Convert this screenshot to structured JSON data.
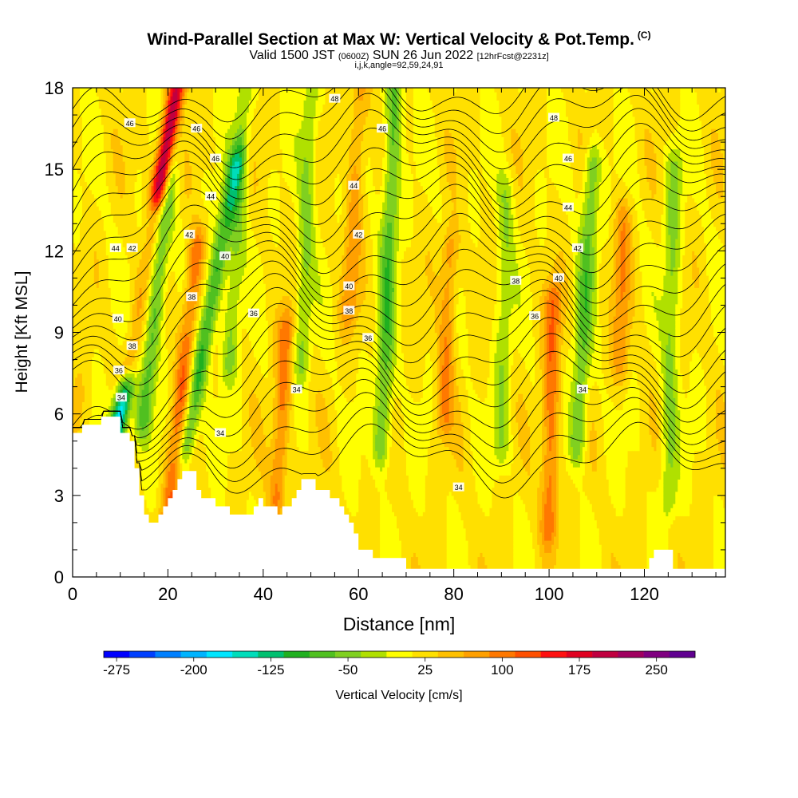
{
  "header": {
    "title": "Wind-Parallel Section at Max W: Vertical Velocity & Pot.Temp.",
    "copyright": "(C)",
    "subtitle_pre": "Valid 1500 JST",
    "subtitle_utc": "(0600Z)",
    "subtitle_mid": "SUN 26 Jun 2022",
    "subtitle_fcst": "[12hrFcst@2231z]",
    "indices": "i,j,k,angle=92,59,24,91"
  },
  "chart_data": {
    "type": "heatmap",
    "xlabel": "Distance [nm]",
    "ylabel": "Height [Kft MSL]",
    "xlim": [
      0,
      137
    ],
    "ylim": [
      0,
      18
    ],
    "x_ticks": [
      0,
      20,
      40,
      60,
      80,
      100,
      120
    ],
    "y_ticks": [
      0,
      3,
      6,
      9,
      12,
      15,
      18
    ],
    "colorbar": {
      "label": "Vertical Velocity [cm/s]",
      "tick_labels": [
        -275,
        -200,
        -125,
        -50,
        25,
        100,
        175,
        250
      ],
      "colors": [
        "#0000ff",
        "#0040ff",
        "#0080ff",
        "#00b4ff",
        "#00e6ff",
        "#00ddbb",
        "#00c070",
        "#20b020",
        "#50c020",
        "#80d020",
        "#b0e000",
        "#ffff00",
        "#ffe000",
        "#ffc000",
        "#ffa000",
        "#ff7800",
        "#ff5000",
        "#ff1010",
        "#e00020",
        "#c00040",
        "#a00060",
        "#800080",
        "#600090"
      ]
    },
    "terrain_profile": {
      "x": [
        0,
        1,
        2,
        3,
        4,
        5,
        6,
        7,
        8,
        9,
        10,
        11,
        12,
        13,
        14,
        15,
        16,
        17,
        18,
        19,
        20,
        21,
        22,
        23,
        24,
        25,
        26,
        27,
        28,
        29,
        30,
        31,
        32,
        33,
        34,
        35,
        36,
        37,
        38,
        39,
        40,
        41,
        42,
        43,
        44,
        45,
        46,
        47,
        48,
        49,
        50,
        51,
        52,
        53,
        54,
        55,
        56,
        57,
        58,
        59,
        60,
        61,
        62,
        63,
        64,
        65,
        66,
        67,
        68,
        69,
        70,
        75,
        80,
        85,
        90,
        95,
        100,
        105,
        110,
        115,
        120,
        121,
        122,
        123,
        124,
        125,
        126,
        127,
        128,
        130,
        135,
        137
      ],
      "height": [
        5.3,
        5.3,
        5.6,
        5.6,
        5.6,
        5.6,
        5.9,
        5.9,
        5.9,
        5.9,
        5.3,
        5.3,
        5.0,
        4.0,
        3.0,
        2.3,
        2.0,
        2.0,
        2.3,
        2.6,
        2.9,
        3.2,
        3.6,
        3.9,
        3.9,
        3.9,
        3.2,
        2.9,
        2.9,
        2.9,
        2.6,
        2.6,
        2.6,
        2.3,
        2.3,
        2.3,
        2.3,
        2.3,
        2.6,
        2.9,
        2.6,
        2.6,
        2.6,
        2.3,
        2.6,
        2.6,
        2.9,
        3.2,
        3.6,
        3.6,
        3.6,
        3.2,
        3.2,
        3.2,
        2.9,
        2.9,
        2.6,
        2.3,
        2.0,
        1.6,
        1.0,
        1.0,
        1.0,
        0.7,
        0.7,
        0.7,
        0.7,
        0.7,
        0.7,
        0.7,
        0.3,
        0.3,
        0.3,
        0.3,
        0.3,
        0.3,
        0.3,
        0.3,
        0.3,
        0.3,
        0.3,
        0.7,
        1.0,
        1.0,
        1.0,
        1.0,
        0.3,
        0.3,
        0.3,
        0.3,
        0.3,
        0.3
      ]
    },
    "updraft_cores": [
      {
        "x": 12,
        "bottom": 8,
        "top": 18,
        "tilt": 1.0,
        "w": 260
      },
      {
        "x": 20,
        "bottom": 2,
        "top": 12,
        "tilt": 0.6,
        "w": 90
      },
      {
        "x": 43,
        "bottom": 3,
        "top": 9,
        "tilt": 0.3,
        "w": 80
      },
      {
        "x": 58,
        "bottom": 10,
        "top": 18,
        "tilt": 0.3,
        "w": 60
      },
      {
        "x": 78,
        "bottom": 6,
        "top": 12,
        "tilt": 0.2,
        "w": 70
      },
      {
        "x": 100,
        "bottom": 2,
        "top": 10,
        "tilt": 0.1,
        "w": 90
      },
      {
        "x": 115,
        "bottom": 8,
        "top": 13,
        "tilt": 0.1,
        "w": 60
      },
      {
        "x": 1,
        "bottom": 5.5,
        "top": 6.5,
        "tilt": 0,
        "w": 40
      }
    ],
    "downdraft_cores": [
      {
        "x": 9,
        "bottom": 5,
        "top": 13,
        "tilt": 1.0,
        "w": -220
      },
      {
        "x": 24,
        "bottom": 5,
        "top": 15,
        "tilt": 1.0,
        "w": -110
      },
      {
        "x": 15,
        "bottom": 6,
        "top": 18,
        "tilt": 0.6,
        "w": -90
      },
      {
        "x": 33,
        "bottom": 8,
        "top": 18,
        "tilt": 0.3,
        "w": -60
      },
      {
        "x": 48,
        "bottom": 8,
        "top": 18,
        "tilt": 0.2,
        "w": -60
      },
      {
        "x": 65,
        "bottom": 5,
        "top": 18,
        "tilt": 0.2,
        "w": -90
      },
      {
        "x": 90,
        "bottom": 5,
        "top": 14,
        "tilt": 0.1,
        "w": -50
      },
      {
        "x": 106,
        "bottom": 5,
        "top": 15,
        "tilt": 0.3,
        "w": -80
      },
      {
        "x": 125,
        "bottom": 3,
        "top": 15,
        "tilt": 0.1,
        "w": -60
      }
    ],
    "contour_labels": [
      {
        "text": "48",
        "x": 55,
        "y": 17.6
      },
      {
        "text": "48",
        "x": 101,
        "y": 16.9
      },
      {
        "text": "46",
        "x": 12,
        "y": 16.7
      },
      {
        "text": "46",
        "x": 26,
        "y": 16.5
      },
      {
        "text": "46",
        "x": 65,
        "y": 16.5
      },
      {
        "text": "46",
        "x": 104,
        "y": 15.4
      },
      {
        "text": "46",
        "x": 30,
        "y": 15.4
      },
      {
        "text": "44",
        "x": 59,
        "y": 14.4
      },
      {
        "text": "44",
        "x": 29,
        "y": 14.0
      },
      {
        "text": "44",
        "x": 104,
        "y": 13.6
      },
      {
        "text": "44",
        "x": 9,
        "y": 12.1
      },
      {
        "text": "42",
        "x": 12.5,
        "y": 12.1
      },
      {
        "text": "42",
        "x": 24.5,
        "y": 12.6
      },
      {
        "text": "42",
        "x": 60,
        "y": 12.6
      },
      {
        "text": "42",
        "x": 106,
        "y": 12.1
      },
      {
        "text": "40",
        "x": 32,
        "y": 11.8
      },
      {
        "text": "40",
        "x": 58,
        "y": 10.7
      },
      {
        "text": "40",
        "x": 102,
        "y": 11.0
      },
      {
        "text": "38",
        "x": 25,
        "y": 10.3
      },
      {
        "text": "38",
        "x": 93,
        "y": 10.9
      },
      {
        "text": "38",
        "x": 58,
        "y": 9.8
      },
      {
        "text": "36",
        "x": 38,
        "y": 9.7
      },
      {
        "text": "36",
        "x": 97,
        "y": 9.6
      },
      {
        "text": "36",
        "x": 62,
        "y": 8.8
      },
      {
        "text": "40",
        "x": 9.5,
        "y": 9.5
      },
      {
        "text": "38",
        "x": 12.5,
        "y": 8.5
      },
      {
        "text": "36",
        "x": 9.7,
        "y": 7.6
      },
      {
        "text": "34",
        "x": 10.2,
        "y": 6.6
      },
      {
        "text": "34",
        "x": 47,
        "y": 6.9
      },
      {
        "text": "34",
        "x": 107,
        "y": 6.9
      },
      {
        "text": "34",
        "x": 31,
        "y": 5.3
      },
      {
        "text": "34",
        "x": 81,
        "y": 3.3
      }
    ]
  }
}
